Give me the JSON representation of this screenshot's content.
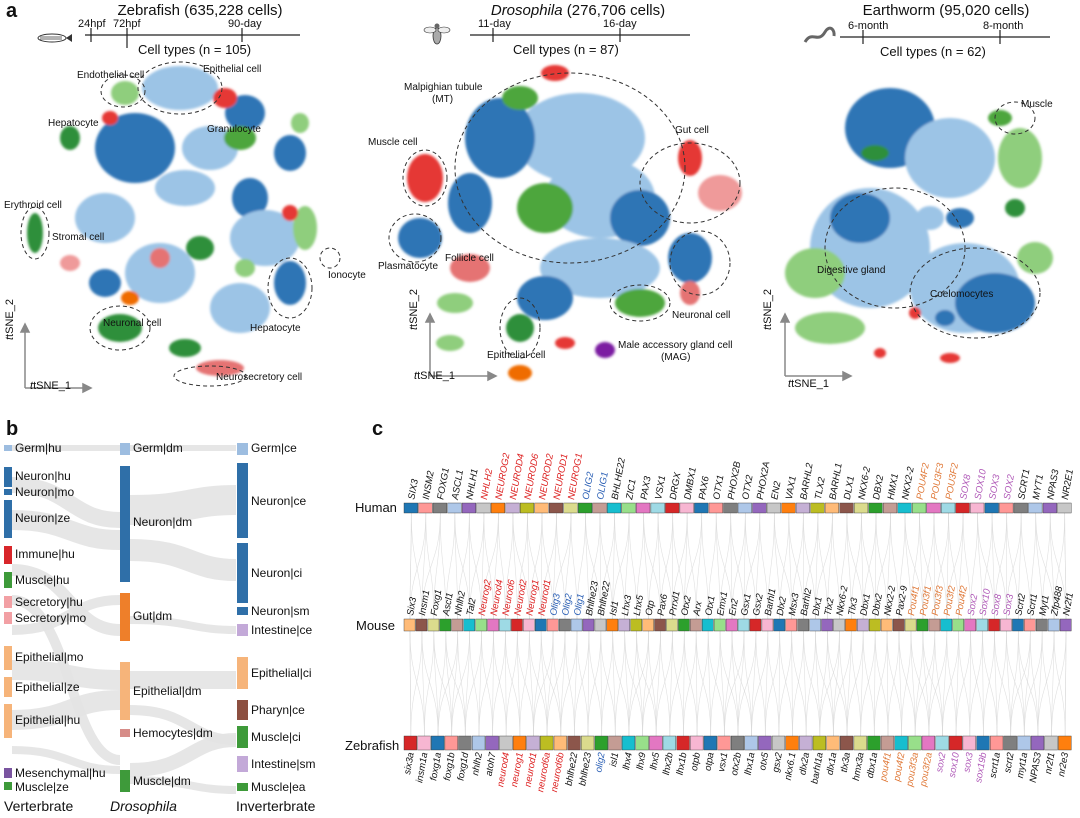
{
  "panel_a": {
    "label": "a",
    "datasets": [
      {
        "title": "Zebrafish (635,228 cells)",
        "timepoints": [
          "24hpf",
          "72hpf",
          "90-day"
        ],
        "cell_types": "Cell types (n = 105)",
        "annotations": [
          "Endothelial cell",
          "Epithelial cell",
          "Hepatocyte",
          "Granulocyte",
          "Erythroid cell",
          "Stromal cell",
          "Ionocyte",
          "Hepatocyte",
          "Neuronal cell",
          "Neurosecretory cell"
        ]
      },
      {
        "title_italic": "Drosophila",
        "title_rest": " (276,706 cells)",
        "timepoints": [
          "11-day",
          "16-day"
        ],
        "cell_types": "Cell types (n = 87)",
        "annotations": [
          "Malpighian tubule",
          "(MT)",
          "Gut cell",
          "Muscle cell",
          "Plasmatocyte",
          "Follicle cell",
          "Neuronal cell",
          "Epithelial cell",
          "Male accessory gland cell",
          "(MAG)"
        ]
      },
      {
        "title": "Earthworm (95,020 cells)",
        "timepoints": [
          "6-month",
          "8-month"
        ],
        "cell_types": "Cell types (n = 62)",
        "annotations": [
          "Muscle",
          "Digestive gland",
          "Coelomocytes"
        ]
      }
    ],
    "axis_y": "tSNE_2",
    "axis_x": "tSNE_1"
  },
  "panel_b": {
    "label": "b",
    "left": [
      "Germ|hu",
      "Neuron|hu",
      "Neuron|mo",
      "Neuron|ze",
      "Immune|hu",
      "Muscle|hu",
      "Secretory|hu",
      "Secretory|mo",
      "Epithelial|mo",
      "Epithelial|ze",
      "Epithelial|hu",
      "Mesenchymal|hu",
      "Muscle|ze"
    ],
    "middle": [
      "Germ|dm",
      "Neuron|dm",
      "Gut|dm",
      "Epithelial|dm",
      "Hemocytes|dm",
      "Muscle|dm"
    ],
    "right": [
      "Germ|ce",
      "Neuron|ce",
      "Neuron|ci",
      "Neuron|sm",
      "Intestine|ce",
      "Epithelial|ci",
      "Pharyn|ce",
      "Muscle|ci",
      "Intestine|sm",
      "Muscle|ea"
    ],
    "bottom": [
      "Verterbrate",
      "Drosophila",
      "Inverterbrate"
    ],
    "colors": {
      "germ": "#9dbde0",
      "neuron": "#2f6fa8",
      "immune": "#d8262a",
      "muscle": "#3e9a3a",
      "secretory": "#f2a0a4",
      "epithelial": "#f6b47a",
      "mesenchymal": "#7a54a0",
      "gut": "#ee7f2a",
      "hemocytes": "#d68c88",
      "pharyn": "#8c4f40",
      "intestine": "#c3a9d8",
      "neuron_light": "#3a7ab8"
    }
  },
  "panel_c": {
    "label": "c",
    "species": [
      "Human",
      "Mouse",
      "Zebrafish"
    ],
    "human_genes": [
      {
        "t": "SIX3",
        "c": "#111"
      },
      {
        "t": "INSM2",
        "c": "#111"
      },
      {
        "t": "FOXG1",
        "c": "#111"
      },
      {
        "t": "ASCL1",
        "c": "#111"
      },
      {
        "t": "NHLH1",
        "c": "#111"
      },
      {
        "t": "NHLH2",
        "c": "#d22"
      },
      {
        "t": "NEUROG2",
        "c": "#d22"
      },
      {
        "t": "NEUROD4",
        "c": "#d22"
      },
      {
        "t": "NEUROD6",
        "c": "#d22"
      },
      {
        "t": "NEUROD2",
        "c": "#d22"
      },
      {
        "t": "NEUROD1",
        "c": "#d22"
      },
      {
        "t": "NEUROG1",
        "c": "#d22"
      },
      {
        "t": "OLIG2",
        "c": "#2a5fb5"
      },
      {
        "t": "OLIG1",
        "c": "#2a5fb5"
      },
      {
        "t": "BHLHE22",
        "c": "#111"
      },
      {
        "t": "ZIC1",
        "c": "#111"
      },
      {
        "t": "PAX3",
        "c": "#111"
      },
      {
        "t": "VSX1",
        "c": "#111"
      },
      {
        "t": "DRGX",
        "c": "#111"
      },
      {
        "t": "DMBX1",
        "c": "#111"
      },
      {
        "t": "PAX6",
        "c": "#111"
      },
      {
        "t": "OTX1",
        "c": "#111"
      },
      {
        "t": "PHOX2B",
        "c": "#111"
      },
      {
        "t": "OTX2",
        "c": "#111"
      },
      {
        "t": "PHOX2A",
        "c": "#111"
      },
      {
        "t": "EN2",
        "c": "#111"
      },
      {
        "t": "VAX1",
        "c": "#111"
      },
      {
        "t": "BARHL2",
        "c": "#111"
      },
      {
        "t": "TLX2",
        "c": "#111"
      },
      {
        "t": "BARHL1",
        "c": "#111"
      },
      {
        "t": "DLX1",
        "c": "#111"
      },
      {
        "t": "NKX6-2",
        "c": "#111"
      },
      {
        "t": "DBX2",
        "c": "#111"
      },
      {
        "t": "HMX1",
        "c": "#111"
      },
      {
        "t": "NKX2-2",
        "c": "#111"
      },
      {
        "t": "POU4F2",
        "c": "#e07a3a"
      },
      {
        "t": "POU3F3",
        "c": "#e07a3a"
      },
      {
        "t": "POU3F2",
        "c": "#e07a3a"
      },
      {
        "t": "SOX8",
        "c": "#b05ab8"
      },
      {
        "t": "SOX10",
        "c": "#b05ab8"
      },
      {
        "t": "SOX3",
        "c": "#b05ab8"
      },
      {
        "t": "SOX2",
        "c": "#b05ab8"
      },
      {
        "t": "SCRT1",
        "c": "#111"
      },
      {
        "t": "MYT1",
        "c": "#111"
      },
      {
        "t": "NPAS3",
        "c": "#111"
      },
      {
        "t": "NR2E1",
        "c": "#111"
      }
    ],
    "mouse_genes": [
      {
        "t": "Six3",
        "c": "#111"
      },
      {
        "t": "Insm1",
        "c": "#111"
      },
      {
        "t": "Foxg1",
        "c": "#111"
      },
      {
        "t": "Ascl1",
        "c": "#111"
      },
      {
        "t": "Nhlh2",
        "c": "#111"
      },
      {
        "t": "Tal2",
        "c": "#111"
      },
      {
        "t": "Neurog2",
        "c": "#d22"
      },
      {
        "t": "Neurod4",
        "c": "#d22"
      },
      {
        "t": "Neurod6",
        "c": "#d22"
      },
      {
        "t": "Neurod2",
        "c": "#d22"
      },
      {
        "t": "Neurog1",
        "c": "#d22"
      },
      {
        "t": "Neurod1",
        "c": "#d22"
      },
      {
        "t": "Olig3",
        "c": "#2a5fb5"
      },
      {
        "t": "Olig2",
        "c": "#2a5fb5"
      },
      {
        "t": "Olig1",
        "c": "#2a5fb5"
      },
      {
        "t": "Bhlhe23",
        "c": "#111"
      },
      {
        "t": "Bhlhe22",
        "c": "#111"
      },
      {
        "t": "Isl1",
        "c": "#111"
      },
      {
        "t": "Lhx3",
        "c": "#111"
      },
      {
        "t": "Lhx5",
        "c": "#111"
      },
      {
        "t": "Otp",
        "c": "#111"
      },
      {
        "t": "Pax6",
        "c": "#111"
      },
      {
        "t": "Prrxl1",
        "c": "#111"
      },
      {
        "t": "Otx2",
        "c": "#111"
      },
      {
        "t": "Arx",
        "c": "#111"
      },
      {
        "t": "Otx1",
        "c": "#111"
      },
      {
        "t": "Emx1",
        "c": "#111"
      },
      {
        "t": "En2",
        "c": "#111"
      },
      {
        "t": "Gsx1",
        "c": "#111"
      },
      {
        "t": "Gsx2",
        "c": "#111"
      },
      {
        "t": "Barhl1",
        "c": "#111"
      },
      {
        "t": "Dlx2",
        "c": "#111"
      },
      {
        "t": "Msx3",
        "c": "#111"
      },
      {
        "t": "Barhl2",
        "c": "#111"
      },
      {
        "t": "Dlx1",
        "c": "#111"
      },
      {
        "t": "Tlx2",
        "c": "#111"
      },
      {
        "t": "Nkx6-2",
        "c": "#111"
      },
      {
        "t": "Tlx3",
        "c": "#111"
      },
      {
        "t": "Dbx1",
        "c": "#111"
      },
      {
        "t": "Dbx2",
        "c": "#111"
      },
      {
        "t": "Nkx2-2",
        "c": "#111"
      },
      {
        "t": "Pax2-9",
        "c": "#111"
      },
      {
        "t": "Pou4f1",
        "c": "#e07a3a"
      },
      {
        "t": "Pou3f1",
        "c": "#e07a3a"
      },
      {
        "t": "Pou3f3",
        "c": "#e07a3a"
      },
      {
        "t": "Pou3f2",
        "c": "#e07a3a"
      },
      {
        "t": "Pou4f2",
        "c": "#e07a3a"
      },
      {
        "t": "Sox2",
        "c": "#b05ab8"
      },
      {
        "t": "Sox10",
        "c": "#b05ab8"
      },
      {
        "t": "Sox8",
        "c": "#b05ab8"
      },
      {
        "t": "Sox3",
        "c": "#b05ab8"
      },
      {
        "t": "Scrt2",
        "c": "#111"
      },
      {
        "t": "Scrt1",
        "c": "#111"
      },
      {
        "t": "Myt1",
        "c": "#111"
      },
      {
        "t": "Zfp488",
        "c": "#111"
      },
      {
        "t": "Nr2f1",
        "c": "#111"
      }
    ],
    "zebrafish_genes": [
      {
        "t": "six3a",
        "c": "#111"
      },
      {
        "t": "insm1a",
        "c": "#111"
      },
      {
        "t": "foxg1a",
        "c": "#111"
      },
      {
        "t": "foxg1b",
        "c": "#111"
      },
      {
        "t": "foxg1d",
        "c": "#111"
      },
      {
        "t": "nhlh2",
        "c": "#111"
      },
      {
        "t": "atoh7",
        "c": "#111"
      },
      {
        "t": "neurod4",
        "c": "#d22"
      },
      {
        "t": "neurog1",
        "c": "#d22"
      },
      {
        "t": "neurod1",
        "c": "#d22"
      },
      {
        "t": "neurod6a",
        "c": "#d22"
      },
      {
        "t": "neurod6b",
        "c": "#d22"
      },
      {
        "t": "bhlhe22",
        "c": "#111"
      },
      {
        "t": "bhlhe23",
        "c": "#111"
      },
      {
        "t": "olig2",
        "c": "#2a5fb5"
      },
      {
        "t": "isl1",
        "c": "#111"
      },
      {
        "t": "lhx4",
        "c": "#111"
      },
      {
        "t": "lhx9",
        "c": "#111"
      },
      {
        "t": "lhx5",
        "c": "#111"
      },
      {
        "t": "lhx2b",
        "c": "#111"
      },
      {
        "t": "lhx1b",
        "c": "#111"
      },
      {
        "t": "otpb",
        "c": "#111"
      },
      {
        "t": "otpa",
        "c": "#111"
      },
      {
        "t": "vsx1",
        "c": "#111"
      },
      {
        "t": "otx2b",
        "c": "#111"
      },
      {
        "t": "lhx1a",
        "c": "#111"
      },
      {
        "t": "otx5",
        "c": "#111"
      },
      {
        "t": "gsx2",
        "c": "#111"
      },
      {
        "t": "nkx6.1",
        "c": "#111"
      },
      {
        "t": "dlx2a",
        "c": "#111"
      },
      {
        "t": "barhl1a",
        "c": "#111"
      },
      {
        "t": "dlx1a",
        "c": "#111"
      },
      {
        "t": "tlx3a",
        "c": "#111"
      },
      {
        "t": "hmx3a",
        "c": "#111"
      },
      {
        "t": "dbx1a",
        "c": "#111"
      },
      {
        "t": "pou4f1",
        "c": "#e07a3a"
      },
      {
        "t": "pou4f2",
        "c": "#e07a3a"
      },
      {
        "t": "pou3f3a",
        "c": "#e07a3a"
      },
      {
        "t": "pou3f2a",
        "c": "#e07a3a"
      },
      {
        "t": "sox2",
        "c": "#b05ab8"
      },
      {
        "t": "sox10",
        "c": "#b05ab8"
      },
      {
        "t": "sox3",
        "c": "#b05ab8"
      },
      {
        "t": "sox19b",
        "c": "#b05ab8"
      },
      {
        "t": "scrt1a",
        "c": "#111"
      },
      {
        "t": "scrt2",
        "c": "#111"
      },
      {
        "t": "myt1a",
        "c": "#111"
      },
      {
        "t": "NPAS3",
        "c": "#111"
      },
      {
        "t": "nr2f1",
        "c": "#111"
      },
      {
        "t": "nr2e3",
        "c": "#111"
      }
    ]
  }
}
